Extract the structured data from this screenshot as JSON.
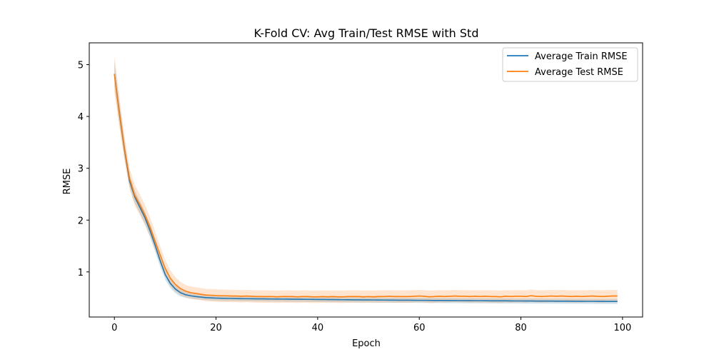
{
  "chart_data": {
    "type": "line",
    "title": "K-Fold CV: Avg Train/Test RMSE with Std",
    "xlabel": "Epoch",
    "ylabel": "RMSE",
    "xlim": [
      -4.95,
      103.95
    ],
    "ylim": [
      0.13,
      5.42
    ],
    "xticks": [
      0,
      20,
      40,
      60,
      80,
      100
    ],
    "yticks": [
      1,
      2,
      3,
      4,
      5
    ],
    "grid": false,
    "legend_position": "top-right",
    "x": [
      0,
      1,
      2,
      3,
      4,
      5,
      6,
      7,
      8,
      9,
      10,
      11,
      12,
      13,
      14,
      15,
      16,
      17,
      18,
      19,
      20,
      21,
      22,
      23,
      24,
      25,
      26,
      27,
      28,
      29,
      30,
      31,
      32,
      33,
      34,
      35,
      36,
      37,
      38,
      39,
      40,
      41,
      42,
      43,
      44,
      45,
      46,
      47,
      48,
      49,
      50,
      51,
      52,
      53,
      54,
      55,
      56,
      57,
      58,
      59,
      60,
      61,
      62,
      63,
      64,
      65,
      66,
      67,
      68,
      69,
      70,
      71,
      72,
      73,
      74,
      75,
      76,
      77,
      78,
      79,
      80,
      81,
      82,
      83,
      84,
      85,
      86,
      87,
      88,
      89,
      90,
      91,
      92,
      93,
      94,
      95,
      96,
      97,
      98,
      99
    ],
    "series": [
      {
        "name": "Average Train RMSE",
        "color": "#1f77b4",
        "values": [
          4.82,
          4.05,
          3.35,
          2.75,
          2.45,
          2.25,
          2.05,
          1.8,
          1.52,
          1.22,
          0.95,
          0.78,
          0.67,
          0.6,
          0.56,
          0.54,
          0.525,
          0.515,
          0.505,
          0.5,
          0.495,
          0.492,
          0.49,
          0.488,
          0.486,
          0.484,
          0.483,
          0.482,
          0.481,
          0.48,
          0.479,
          0.478,
          0.477,
          0.476,
          0.475,
          0.474,
          0.473,
          0.472,
          0.471,
          0.47,
          0.469,
          0.468,
          0.467,
          0.466,
          0.465,
          0.464,
          0.463,
          0.462,
          0.461,
          0.46,
          0.46,
          0.459,
          0.458,
          0.457,
          0.456,
          0.456,
          0.455,
          0.454,
          0.454,
          0.453,
          0.452,
          0.452,
          0.451,
          0.45,
          0.45,
          0.449,
          0.448,
          0.448,
          0.447,
          0.446,
          0.446,
          0.445,
          0.445,
          0.444,
          0.443,
          0.443,
          0.442,
          0.442,
          0.441,
          0.44,
          0.44,
          0.439,
          0.439,
          0.438,
          0.438,
          0.437,
          0.437,
          0.436,
          0.436,
          0.435,
          0.435,
          0.434,
          0.434,
          0.433,
          0.433,
          0.432,
          0.432,
          0.431,
          0.431,
          0.43
        ],
        "std": [
          0.25,
          0.2,
          0.15,
          0.12,
          0.12,
          0.12,
          0.12,
          0.12,
          0.12,
          0.12,
          0.1,
          0.09,
          0.08,
          0.07,
          0.06,
          0.055,
          0.05,
          0.05,
          0.05,
          0.05,
          0.05,
          0.05,
          0.05,
          0.05,
          0.05,
          0.05,
          0.05,
          0.05,
          0.05,
          0.05,
          0.05,
          0.05,
          0.05,
          0.05,
          0.05,
          0.05,
          0.05,
          0.05,
          0.05,
          0.05,
          0.05,
          0.05,
          0.05,
          0.05,
          0.05,
          0.05,
          0.05,
          0.05,
          0.05,
          0.05,
          0.05,
          0.05,
          0.05,
          0.05,
          0.05,
          0.05,
          0.05,
          0.05,
          0.05,
          0.05,
          0.05,
          0.05,
          0.05,
          0.05,
          0.05,
          0.05,
          0.05,
          0.05,
          0.05,
          0.05,
          0.05,
          0.05,
          0.05,
          0.05,
          0.05,
          0.05,
          0.05,
          0.05,
          0.05,
          0.05,
          0.05,
          0.05,
          0.05,
          0.05,
          0.05,
          0.05,
          0.05,
          0.05,
          0.05,
          0.05,
          0.05,
          0.05,
          0.05,
          0.05,
          0.05,
          0.05,
          0.05,
          0.05,
          0.05,
          0.05
        ]
      },
      {
        "name": "Average Test RMSE",
        "color": "#ff7f0e",
        "values": [
          4.82,
          4.08,
          3.38,
          2.8,
          2.48,
          2.3,
          2.1,
          1.87,
          1.6,
          1.33,
          1.07,
          0.88,
          0.76,
          0.68,
          0.63,
          0.6,
          0.585,
          0.57,
          0.555,
          0.55,
          0.545,
          0.54,
          0.54,
          0.535,
          0.535,
          0.53,
          0.535,
          0.53,
          0.525,
          0.525,
          0.525,
          0.525,
          0.52,
          0.525,
          0.525,
          0.525,
          0.52,
          0.525,
          0.525,
          0.52,
          0.52,
          0.525,
          0.52,
          0.525,
          0.52,
          0.52,
          0.525,
          0.525,
          0.525,
          0.52,
          0.525,
          0.52,
          0.525,
          0.525,
          0.53,
          0.525,
          0.525,
          0.525,
          0.525,
          0.53,
          0.535,
          0.53,
          0.52,
          0.525,
          0.53,
          0.525,
          0.53,
          0.535,
          0.53,
          0.53,
          0.525,
          0.53,
          0.525,
          0.53,
          0.525,
          0.525,
          0.52,
          0.53,
          0.525,
          0.53,
          0.53,
          0.525,
          0.54,
          0.53,
          0.525,
          0.53,
          0.535,
          0.53,
          0.535,
          0.53,
          0.525,
          0.53,
          0.525,
          0.53,
          0.535,
          0.53,
          0.525,
          0.53,
          0.535,
          0.535
        ],
        "std": [
          0.35,
          0.3,
          0.25,
          0.2,
          0.2,
          0.2,
          0.2,
          0.19,
          0.18,
          0.17,
          0.16,
          0.15,
          0.14,
          0.13,
          0.12,
          0.12,
          0.12,
          0.12,
          0.12,
          0.12,
          0.12,
          0.12,
          0.12,
          0.12,
          0.12,
          0.12,
          0.12,
          0.12,
          0.12,
          0.12,
          0.12,
          0.12,
          0.12,
          0.12,
          0.12,
          0.12,
          0.12,
          0.12,
          0.12,
          0.12,
          0.12,
          0.12,
          0.12,
          0.12,
          0.12,
          0.12,
          0.12,
          0.12,
          0.12,
          0.12,
          0.12,
          0.12,
          0.12,
          0.12,
          0.12,
          0.12,
          0.12,
          0.12,
          0.12,
          0.12,
          0.12,
          0.12,
          0.12,
          0.12,
          0.12,
          0.12,
          0.12,
          0.12,
          0.12,
          0.12,
          0.12,
          0.12,
          0.12,
          0.12,
          0.12,
          0.12,
          0.12,
          0.12,
          0.12,
          0.12,
          0.12,
          0.12,
          0.12,
          0.12,
          0.12,
          0.12,
          0.12,
          0.12,
          0.12,
          0.12,
          0.12,
          0.12,
          0.12,
          0.12,
          0.12,
          0.12,
          0.12,
          0.12,
          0.12,
          0.12
        ]
      }
    ]
  }
}
